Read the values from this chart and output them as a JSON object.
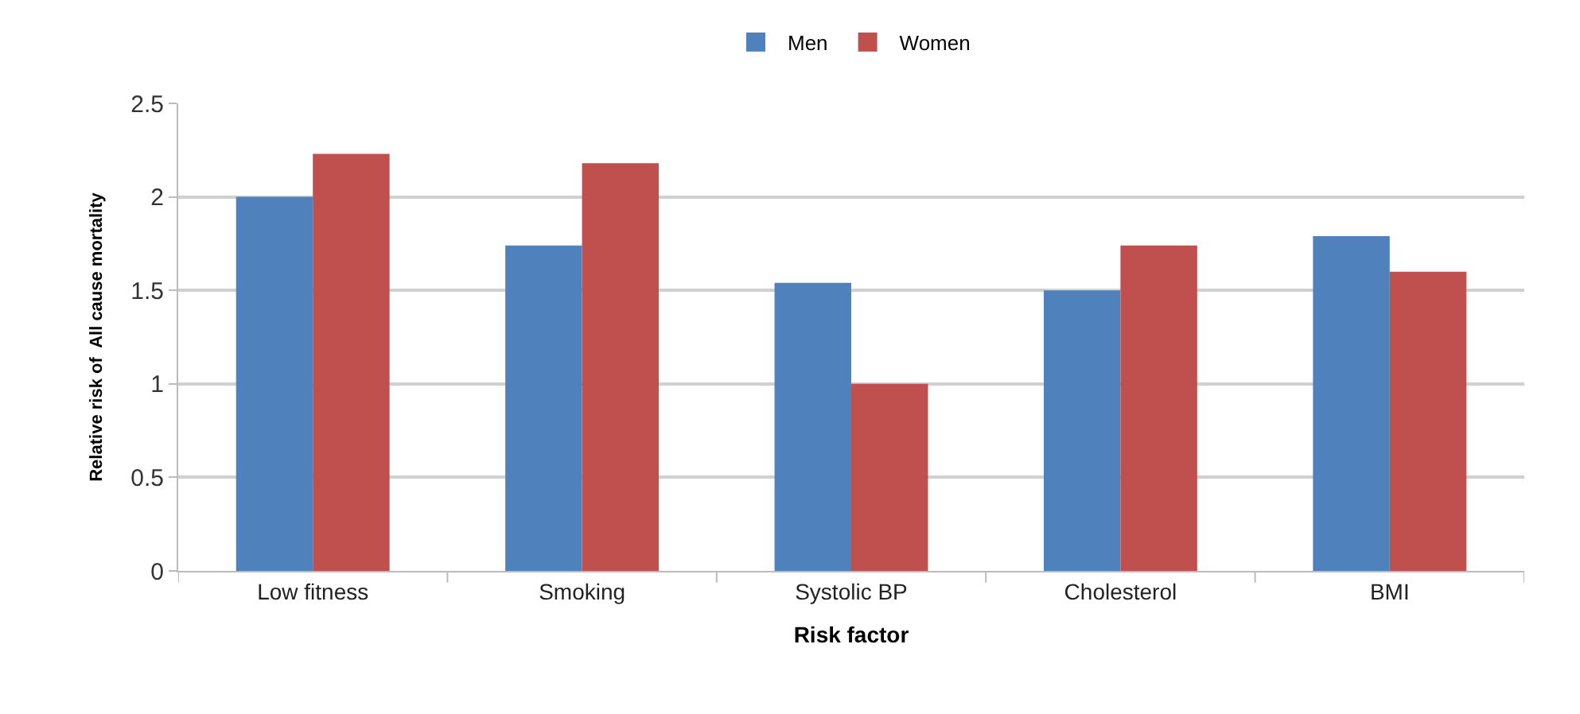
{
  "chart_data": {
    "type": "bar",
    "xlabel": "Risk factor",
    "ylabel": "Relative risk of  All cause mortality",
    "categories": [
      "Low fitness",
      "Smoking",
      "Systolic BP",
      "Cholesterol",
      "BMI"
    ],
    "series": [
      {
        "name": "Men",
        "color": "#4f81bd",
        "values": [
          2.0,
          1.74,
          1.54,
          1.5,
          1.79
        ]
      },
      {
        "name": "Women",
        "color": "#c0504d",
        "values": [
          2.23,
          2.18,
          1.0,
          1.74,
          1.6
        ]
      }
    ],
    "ylim": [
      0,
      2.5
    ],
    "yticks": [
      0,
      0.5,
      1,
      1.5,
      2,
      2.5
    ],
    "grid": "y",
    "legend": "top"
  }
}
